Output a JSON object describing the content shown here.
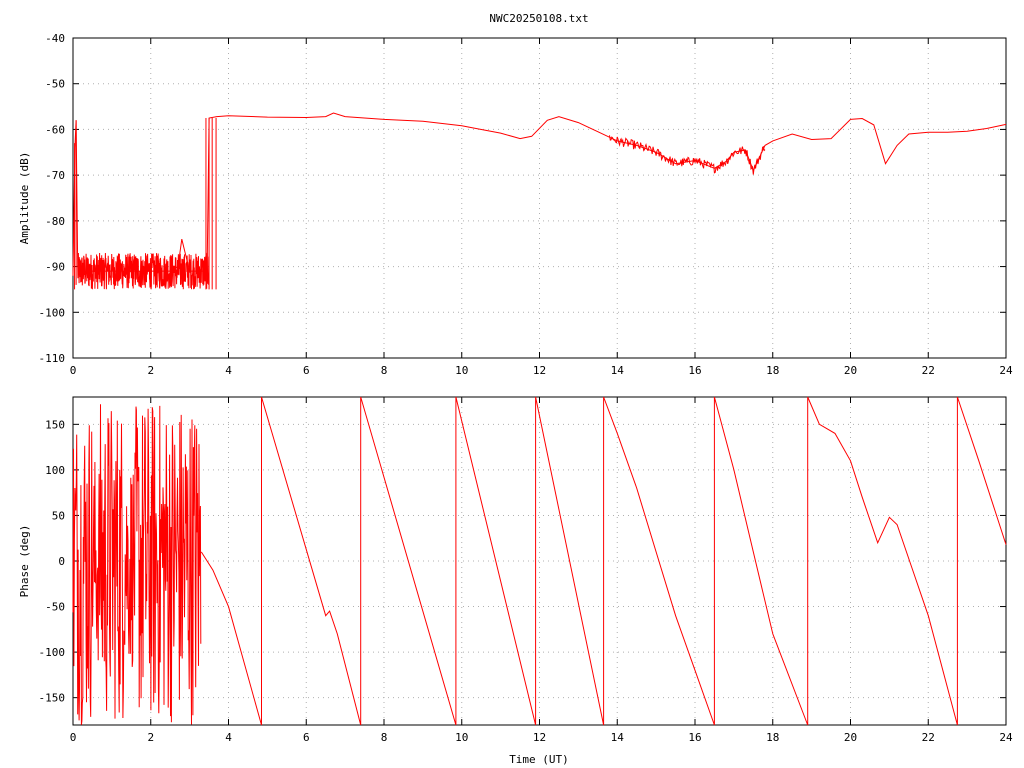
{
  "window": {
    "title": "NWC20250108.txt"
  },
  "colors": {
    "trace": "#ff0000",
    "axis": "#000000",
    "grid": "#b0b0b0",
    "background": "#ffffff"
  },
  "chart_data": [
    {
      "type": "line",
      "title": "NWC20250108.txt",
      "xlabel": "",
      "ylabel": "Amplitude (dB)",
      "xlim": [
        0,
        24
      ],
      "ylim": [
        -110,
        -40
      ],
      "xticks": [
        "0",
        "2",
        "4",
        "6",
        "8",
        "10",
        "12",
        "14",
        "16",
        "18",
        "20",
        "22",
        "24"
      ],
      "yticks": [
        "-40",
        "-50",
        "-60",
        "-70",
        "-80",
        "-90",
        "-100",
        "-110"
      ],
      "grid": true,
      "series": [
        {
          "x": [
            0,
            0.05,
            0.08,
            0.12,
            0.2,
            0.4,
            1.0,
            1.5,
            2.0,
            2.5,
            2.7,
            2.8,
            3.0,
            3.3,
            3.45,
            3.5,
            3.7,
            4.0,
            5.0,
            6.0,
            6.5,
            6.7,
            7.0,
            8.0,
            9.0,
            10.0,
            11.0,
            11.5,
            11.8,
            12.2,
            12.5,
            13.0,
            13.5,
            14.0,
            14.5,
            15.0,
            15.5,
            16.0,
            16.5,
            16.8,
            17.0,
            17.3,
            17.5,
            17.8,
            18.0,
            18.5,
            19.0,
            19.5,
            20.0,
            20.3,
            20.6,
            20.9,
            21.2,
            21.5,
            22.0,
            22.5,
            23.0,
            23.5,
            24.0
          ],
          "y": [
            -92,
            -64,
            -58,
            -90,
            -92,
            -91,
            -91,
            -91,
            -91,
            -91,
            -90,
            -84,
            -91,
            -91,
            -91,
            -57.5,
            -57.2,
            -57,
            -57.3,
            -57.4,
            -57.2,
            -56.4,
            -57.2,
            -57.8,
            -58.2,
            -59.2,
            -60.8,
            -62,
            -61.5,
            -58,
            -57.2,
            -58.5,
            -60.5,
            -62.5,
            -63.5,
            -65,
            -67.5,
            -66.8,
            -68.5,
            -67,
            -65,
            -64.5,
            -69,
            -63.5,
            -62.5,
            -61,
            -62.2,
            -62,
            -57.8,
            -57.6,
            -59,
            -67.5,
            -63.5,
            -61,
            -60.6,
            -60.6,
            -60.4,
            -59.8,
            -58.9
          ]
        }
      ]
    },
    {
      "type": "line",
      "title": "",
      "xlabel": "Time (UT)",
      "ylabel": "Phase (deg)",
      "xlim": [
        0,
        24
      ],
      "ylim": [
        -180,
        180
      ],
      "xticks": [
        "0",
        "2",
        "4",
        "6",
        "8",
        "10",
        "12",
        "14",
        "16",
        "18",
        "20",
        "22",
        "24"
      ],
      "yticks": [
        "150",
        "100",
        "50",
        "0",
        "-50",
        "-100",
        "-150"
      ],
      "grid": true,
      "series": [
        {
          "x": [
            3.3,
            3.6,
            4.0,
            4.85,
            4.85,
            6.5,
            6.6,
            6.8,
            7.4,
            7.4,
            9.85,
            9.85,
            11.9,
            11.9,
            13.65,
            13.65,
            14.0,
            14.5,
            15.0,
            15.5,
            16.0,
            16.5,
            16.5,
            17.0,
            17.5,
            18.0,
            18.9,
            18.9,
            19.2,
            19.6,
            20.0,
            20.3,
            20.7,
            21.0,
            21.2,
            21.6,
            22.0,
            22.75,
            22.75,
            23.3,
            24.0
          ],
          "y": [
            10,
            -10,
            -50,
            -180,
            180,
            -60,
            -55,
            -80,
            -180,
            180,
            -180,
            180,
            -180,
            180,
            -180,
            180,
            140,
            80,
            10,
            -60,
            -120,
            -180,
            180,
            100,
            10,
            -80,
            -180,
            180,
            150,
            140,
            110,
            70,
            20,
            48,
            40,
            -10,
            -60,
            -180,
            180,
            110,
            18
          ]
        }
      ]
    }
  ]
}
